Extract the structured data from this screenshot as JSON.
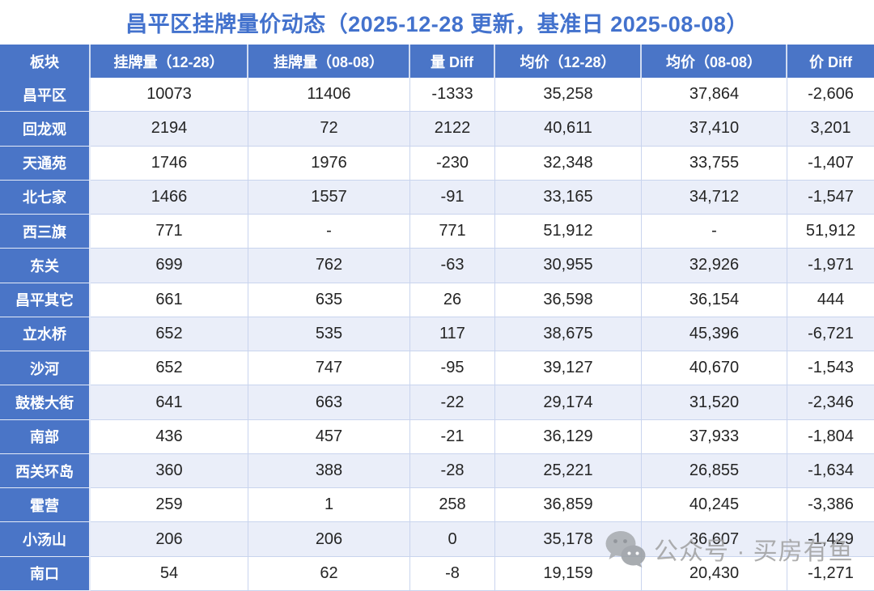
{
  "title": "昌平区挂牌量价动态（2025-12-28 更新，基准日 2025-08-08）",
  "chart_data": {
    "type": "table",
    "title": "昌平区挂牌量价动态（2025-12-28 更新，基准日 2025-08-08）",
    "columns": [
      "板块",
      "挂牌量（12-28）",
      "挂牌量（08-08）",
      "量 Diff",
      "均价（12-28）",
      "均价（08-08）",
      "价 Diff"
    ],
    "rows": [
      [
        "昌平区",
        "10073",
        "11406",
        "-1333",
        "35,258",
        "37,864",
        "-2,606"
      ],
      [
        "回龙观",
        "2194",
        "72",
        "2122",
        "40,611",
        "37,410",
        "3,201"
      ],
      [
        "天通苑",
        "1746",
        "1976",
        "-230",
        "32,348",
        "33,755",
        "-1,407"
      ],
      [
        "北七家",
        "1466",
        "1557",
        "-91",
        "33,165",
        "34,712",
        "-1,547"
      ],
      [
        "西三旗",
        "771",
        "-",
        "771",
        "51,912",
        "-",
        "51,912"
      ],
      [
        "东关",
        "699",
        "762",
        "-63",
        "30,955",
        "32,926",
        "-1,971"
      ],
      [
        "昌平其它",
        "661",
        "635",
        "26",
        "36,598",
        "36,154",
        "444"
      ],
      [
        "立水桥",
        "652",
        "535",
        "117",
        "38,675",
        "45,396",
        "-6,721"
      ],
      [
        "沙河",
        "652",
        "747",
        "-95",
        "39,127",
        "40,670",
        "-1,543"
      ],
      [
        "鼓楼大街",
        "641",
        "663",
        "-22",
        "29,174",
        "31,520",
        "-2,346"
      ],
      [
        "南部",
        "436",
        "457",
        "-21",
        "36,129",
        "37,933",
        "-1,804"
      ],
      [
        "西关环岛",
        "360",
        "388",
        "-28",
        "25,221",
        "26,855",
        "-1,634"
      ],
      [
        "霍营",
        "259",
        "1",
        "258",
        "36,859",
        "40,245",
        "-3,386"
      ],
      [
        "小汤山",
        "206",
        "206",
        "0",
        "35,178",
        "36,607",
        "-1,429"
      ],
      [
        "南口",
        "54",
        "62",
        "-8",
        "19,159",
        "20,430",
        "-1,271"
      ]
    ]
  },
  "watermark": {
    "icon": "wechat-icon",
    "text": "公众号 · 买房有鱼"
  },
  "colors": {
    "header_bg": "#4A75C7",
    "title": "#4372CD",
    "row_alt": "#EAEEF9",
    "border": "#C9D4EE",
    "text": "#242424",
    "watermark_gray": "#A0A0A0"
  }
}
